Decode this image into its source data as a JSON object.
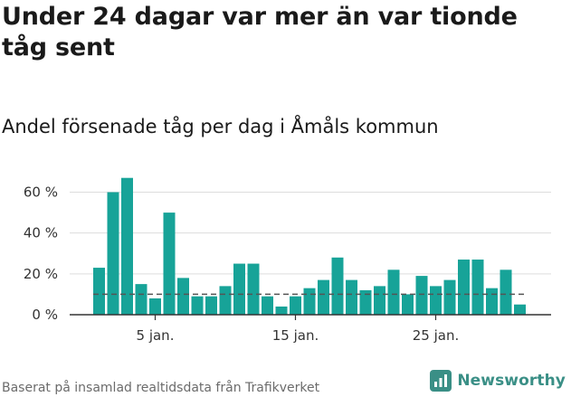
{
  "headline": "Under 24 dagar var mer än var tionde tåg sent",
  "subtitle": "Andel försenade tåg per dag i Åmåls kommun",
  "source": "Baserat på insamlad realtidsdata från Trafikverket",
  "brand": {
    "name": "Newsworthy",
    "logo_icon": "newsworthy-chart-logo-icon",
    "color": "#3a8f86"
  },
  "colors": {
    "bar": "#17a398",
    "grid": "#dddddd",
    "axis": "#333333",
    "reference_line": "#555555"
  },
  "chart_data": {
    "type": "bar",
    "title": "Andel försenade tåg per dag i Åmåls kommun",
    "xlabel": "",
    "ylabel": "",
    "unit": "%",
    "x": [
      1,
      2,
      3,
      4,
      5,
      6,
      7,
      8,
      9,
      10,
      11,
      12,
      13,
      14,
      15,
      16,
      17,
      18,
      19,
      20,
      21,
      22,
      23,
      24,
      25,
      26,
      27,
      28,
      29,
      30,
      31
    ],
    "values": [
      23,
      60,
      67,
      15,
      8,
      50,
      18,
      9,
      9,
      14,
      25,
      25,
      9,
      4,
      9,
      13,
      17,
      28,
      17,
      12,
      14,
      22,
      10,
      19,
      14,
      17,
      27,
      27,
      13,
      22,
      5
    ],
    "x_ticks": [
      {
        "x": 5,
        "label": "5 jan."
      },
      {
        "x": 15,
        "label": "15 jan."
      },
      {
        "x": 25,
        "label": "25 jan."
      }
    ],
    "y_ticks": [
      {
        "value": 0,
        "label": "0 %"
      },
      {
        "value": 20,
        "label": "20 %"
      },
      {
        "value": 40,
        "label": "40 %"
      },
      {
        "value": 60,
        "label": "60 %"
      }
    ],
    "ylim": [
      0,
      62
    ],
    "grid": true,
    "reference_line": 10,
    "reference_line_style": "dashed"
  }
}
